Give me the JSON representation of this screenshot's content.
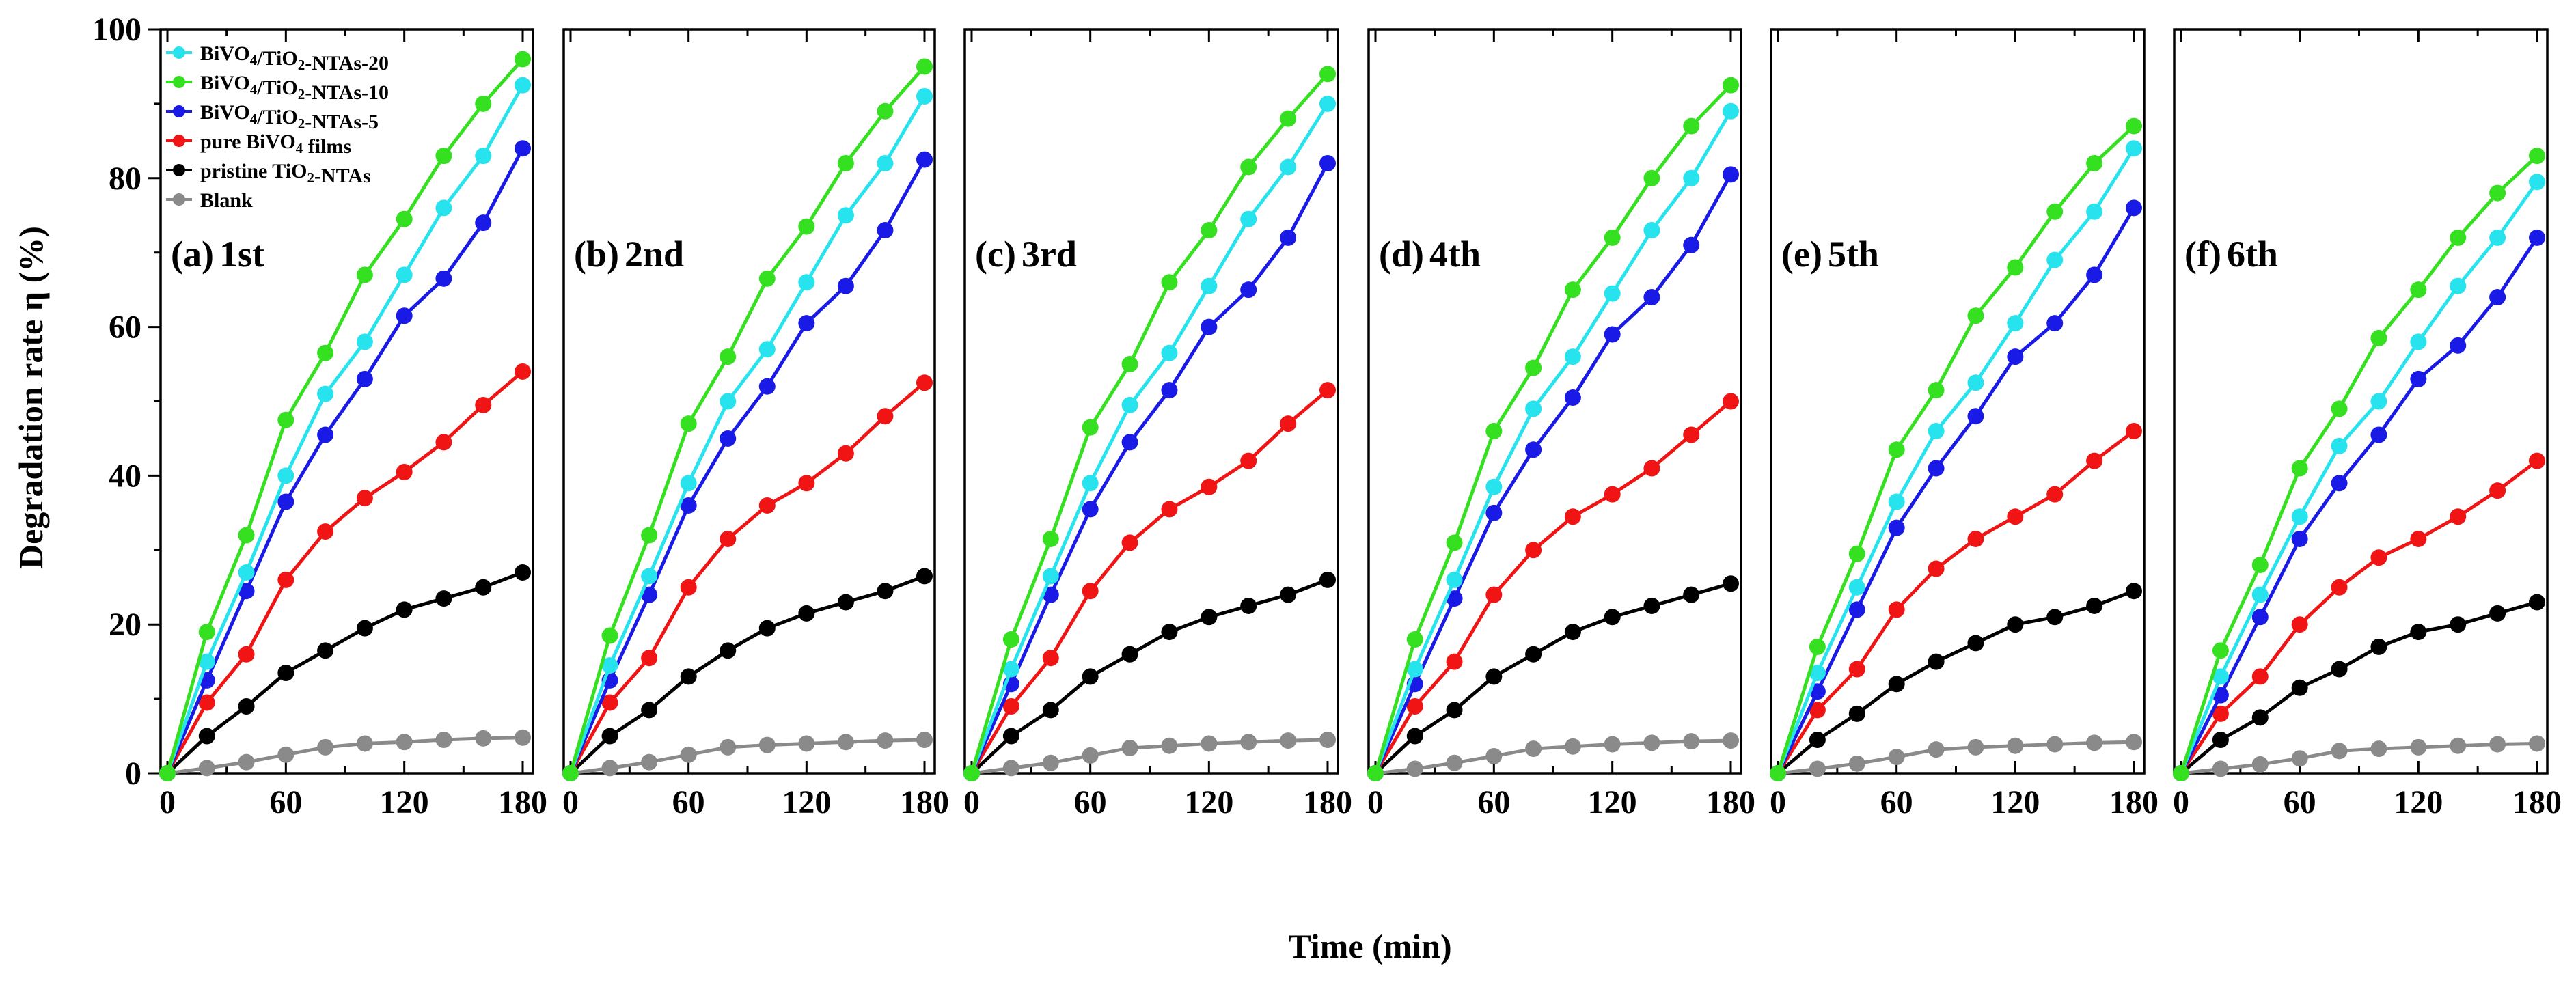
{
  "chart_data": {
    "type": "line",
    "ylabel": "Degradation rate  η (%)",
    "xlabel": "Time (min)",
    "xlim": [
      0,
      180
    ],
    "ylim": [
      0,
      100
    ],
    "x_ticks": [
      0,
      60,
      120,
      180
    ],
    "y_ticks": [
      0,
      20,
      40,
      60,
      80,
      100
    ],
    "x": [
      0,
      20,
      40,
      60,
      80,
      100,
      120,
      140,
      160,
      180
    ],
    "legend": [
      {
        "label": "BiVO4/TiO2-NTAs-20",
        "parts": [
          [
            "BiVO",
            ""
          ],
          [
            "4",
            "sub"
          ],
          [
            "/TiO",
            ""
          ],
          [
            "2",
            "sub"
          ],
          [
            "-NTAs-20",
            ""
          ]
        ],
        "color": "#27e3ee"
      },
      {
        "label": "BiVO4/TiO2-NTAs-10",
        "parts": [
          [
            "BiVO",
            ""
          ],
          [
            "4",
            "sub"
          ],
          [
            "/TiO",
            ""
          ],
          [
            "2",
            "sub"
          ],
          [
            "-NTAs-10",
            ""
          ]
        ],
        "color": "#35e020"
      },
      {
        "label": "BiVO4/TiO2-NTAs-5",
        "parts": [
          [
            "BiVO",
            ""
          ],
          [
            "4",
            "sub"
          ],
          [
            "/TiO",
            ""
          ],
          [
            "2",
            "sub"
          ],
          [
            "-NTAs-5",
            ""
          ]
        ],
        "color": "#1a1ae6"
      },
      {
        "label": "pure BiVO4 films",
        "parts": [
          [
            "pure BiVO",
            ""
          ],
          [
            "4",
            "sub"
          ],
          [
            " films",
            ""
          ]
        ],
        "color": "#f01414"
      },
      {
        "label": "pristine TiO2-NTAs",
        "parts": [
          [
            "pristine TiO",
            ""
          ],
          [
            "2",
            "sub"
          ],
          [
            "-NTAs",
            ""
          ]
        ],
        "color": "#000000"
      },
      {
        "label": "Blank",
        "parts": [
          [
            "Blank",
            ""
          ]
        ],
        "color": "#8a8a8a"
      }
    ],
    "panels": [
      {
        "label": "(a)",
        "cycle": "1st",
        "series": [
          {
            "name": "BiVO4/TiO2-NTAs-20",
            "values": [
              0,
              15,
              27,
              40,
              51,
              58,
              67,
              76,
              83,
              92.5
            ]
          },
          {
            "name": "BiVO4/TiO2-NTAs-10",
            "values": [
              0,
              19,
              32,
              47.5,
              56.5,
              67,
              74.5,
              83,
              90,
              96
            ]
          },
          {
            "name": "BiVO4/TiO2-NTAs-5",
            "values": [
              0,
              12.5,
              24.5,
              36.5,
              45.5,
              53,
              61.5,
              66.5,
              74,
              84
            ]
          },
          {
            "name": "pure BiVO4 films",
            "values": [
              0,
              9.5,
              16,
              26,
              32.5,
              37,
              40.5,
              44.5,
              49.5,
              54
            ]
          },
          {
            "name": "pristine TiO2-NTAs",
            "values": [
              0,
              5,
              9,
              13.5,
              16.5,
              19.5,
              22,
              23.5,
              25,
              27
            ]
          },
          {
            "name": "Blank",
            "values": [
              0,
              0.7,
              1.5,
              2.5,
              3.5,
              4,
              4.2,
              4.5,
              4.7,
              4.8
            ]
          }
        ]
      },
      {
        "label": "(b)",
        "cycle": "2nd",
        "series": [
          {
            "name": "BiVO4/TiO2-NTAs-20",
            "values": [
              0,
              14.5,
              26.5,
              39,
              50,
              57,
              66,
              75,
              82,
              91
            ]
          },
          {
            "name": "BiVO4/TiO2-NTAs-10",
            "values": [
              0,
              18.5,
              32,
              47,
              56,
              66.5,
              73.5,
              82,
              89,
              95
            ]
          },
          {
            "name": "BiVO4/TiO2-NTAs-5",
            "values": [
              0,
              12.5,
              24,
              36,
              45,
              52,
              60.5,
              65.5,
              73,
              82.5
            ]
          },
          {
            "name": "pure BiVO4 films",
            "values": [
              0,
              9.5,
              15.5,
              25,
              31.5,
              36,
              39,
              43,
              48,
              52.5
            ]
          },
          {
            "name": "pristine TiO2-NTAs",
            "values": [
              0,
              5,
              8.5,
              13,
              16.5,
              19.5,
              21.5,
              23,
              24.5,
              26.5
            ]
          },
          {
            "name": "Blank",
            "values": [
              0,
              0.7,
              1.5,
              2.5,
              3.5,
              3.8,
              4,
              4.2,
              4.4,
              4.5
            ]
          }
        ]
      },
      {
        "label": "(c)",
        "cycle": "3rd",
        "series": [
          {
            "name": "BiVO4/TiO2-NTAs-20",
            "values": [
              0,
              14,
              26.5,
              39,
              49.5,
              56.5,
              65.5,
              74.5,
              81.5,
              90
            ]
          },
          {
            "name": "BiVO4/TiO2-NTAs-10",
            "values": [
              0,
              18,
              31.5,
              46.5,
              55,
              66,
              73,
              81.5,
              88,
              94
            ]
          },
          {
            "name": "BiVO4/TiO2-NTAs-5",
            "values": [
              0,
              12,
              24,
              35.5,
              44.5,
              51.5,
              60,
              65,
              72,
              82
            ]
          },
          {
            "name": "pure BiVO4 films",
            "values": [
              0,
              9,
              15.5,
              24.5,
              31,
              35.5,
              38.5,
              42,
              47,
              51.5
            ]
          },
          {
            "name": "pristine TiO2-NTAs",
            "values": [
              0,
              5,
              8.5,
              13,
              16,
              19,
              21,
              22.5,
              24,
              26
            ]
          },
          {
            "name": "Blank",
            "values": [
              0,
              0.7,
              1.4,
              2.4,
              3.4,
              3.7,
              4,
              4.2,
              4.4,
              4.5
            ]
          }
        ]
      },
      {
        "label": "(d)",
        "cycle": "4th",
        "series": [
          {
            "name": "BiVO4/TiO2-NTAs-20",
            "values": [
              0,
              14,
              26,
              38.5,
              49,
              56,
              64.5,
              73,
              80,
              89
            ]
          },
          {
            "name": "BiVO4/TiO2-NTAs-10",
            "values": [
              0,
              18,
              31,
              46,
              54.5,
              65,
              72,
              80,
              87,
              92.5
            ]
          },
          {
            "name": "BiVO4/TiO2-NTAs-5",
            "values": [
              0,
              12,
              23.5,
              35,
              43.5,
              50.5,
              59,
              64,
              71,
              80.5
            ]
          },
          {
            "name": "pure BiVO4 films",
            "values": [
              0,
              9,
              15,
              24,
              30,
              34.5,
              37.5,
              41,
              45.5,
              50
            ]
          },
          {
            "name": "pristine TiO2-NTAs",
            "values": [
              0,
              5,
              8.5,
              13,
              16,
              19,
              21,
              22.5,
              24,
              25.5
            ]
          },
          {
            "name": "Blank",
            "values": [
              0,
              0.6,
              1.4,
              2.3,
              3.3,
              3.6,
              3.9,
              4.1,
              4.3,
              4.4
            ]
          }
        ]
      },
      {
        "label": "(e)",
        "cycle": "5th",
        "series": [
          {
            "name": "BiVO4/TiO2-NTAs-20",
            "values": [
              0,
              13.5,
              25,
              36.5,
              46,
              52.5,
              60.5,
              69,
              75.5,
              84
            ]
          },
          {
            "name": "BiVO4/TiO2-NTAs-10",
            "values": [
              0,
              17,
              29.5,
              43.5,
              51.5,
              61.5,
              68,
              75.5,
              82,
              87
            ]
          },
          {
            "name": "BiVO4/TiO2-NTAs-5",
            "values": [
              0,
              11,
              22,
              33,
              41,
              48,
              56,
              60.5,
              67,
              76
            ]
          },
          {
            "name": "pure BiVO4 films",
            "values": [
              0,
              8.5,
              14,
              22,
              27.5,
              31.5,
              34.5,
              37.5,
              42,
              46
            ]
          },
          {
            "name": "pristine TiO2-NTAs",
            "values": [
              0,
              4.5,
              8,
              12,
              15,
              17.5,
              20,
              21,
              22.5,
              24.5
            ]
          },
          {
            "name": "Blank",
            "values": [
              0,
              0.6,
              1.3,
              2.2,
              3.2,
              3.5,
              3.7,
              3.9,
              4.1,
              4.2
            ]
          }
        ]
      },
      {
        "label": "(f)",
        "cycle": "6th",
        "series": [
          {
            "name": "BiVO4/TiO2-NTAs-20",
            "values": [
              0,
              13,
              24,
              34.5,
              44,
              50,
              58,
              65.5,
              72,
              79.5
            ]
          },
          {
            "name": "BiVO4/TiO2-NTAs-10",
            "values": [
              0,
              16.5,
              28,
              41,
              49,
              58.5,
              65,
              72,
              78,
              83
            ]
          },
          {
            "name": "BiVO4/TiO2-NTAs-5",
            "values": [
              0,
              10.5,
              21,
              31.5,
              39,
              45.5,
              53,
              57.5,
              64,
              72
            ]
          },
          {
            "name": "pure BiVO4 films",
            "values": [
              0,
              8,
              13,
              20,
              25,
              29,
              31.5,
              34.5,
              38,
              42
            ]
          },
          {
            "name": "pristine TiO2-NTAs",
            "values": [
              0,
              4.5,
              7.5,
              11.5,
              14,
              17,
              19,
              20,
              21.5,
              23
            ]
          },
          {
            "name": "Blank",
            "values": [
              0,
              0.6,
              1.2,
              2,
              3,
              3.3,
              3.5,
              3.7,
              3.9,
              4
            ]
          }
        ]
      }
    ]
  }
}
